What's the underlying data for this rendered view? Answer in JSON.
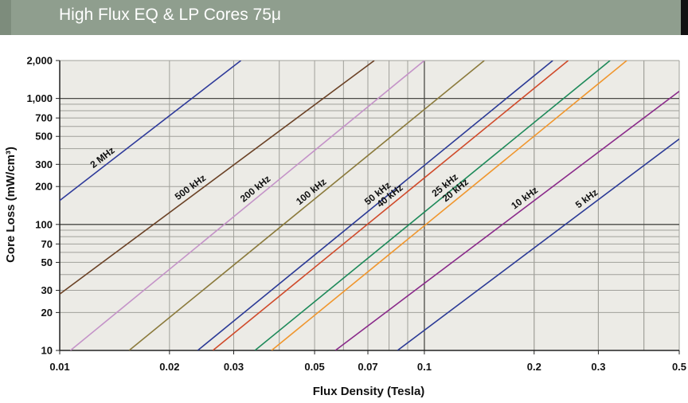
{
  "header": {
    "title": "High Flux EQ & LP Cores 75μ"
  },
  "colors": {
    "plot_bg": "#ecebe6",
    "grid": "#a0a09a",
    "grid_major": "#4a4a46",
    "header_bg": "#8f9e8e"
  },
  "chart_data": {
    "type": "line",
    "title": "",
    "xlabel": "Flux Density (Tesla)",
    "ylabel": "Core Loss (mW/cm³)",
    "xscale": "log",
    "yscale": "log",
    "xlim": [
      0.01,
      0.5
    ],
    "ylim": [
      10,
      2000
    ],
    "grid": true,
    "xticks": [
      {
        "value": 0.01,
        "label": "0.01"
      },
      {
        "value": 0.02,
        "label": "0.02"
      },
      {
        "value": 0.03,
        "label": "0.03"
      },
      {
        "value": 0.05,
        "label": "0.05"
      },
      {
        "value": 0.07,
        "label": "0.07"
      },
      {
        "value": 0.1,
        "label": "0.1"
      },
      {
        "value": 0.2,
        "label": "0.2"
      },
      {
        "value": 0.3,
        "label": "0.3"
      },
      {
        "value": 0.5,
        "label": "0.5"
      }
    ],
    "yticks": [
      {
        "value": 10,
        "label": "10"
      },
      {
        "value": 20,
        "label": "20"
      },
      {
        "value": 30,
        "label": "30"
      },
      {
        "value": 50,
        "label": "50"
      },
      {
        "value": 70,
        "label": "70"
      },
      {
        "value": 100,
        "label": "100"
      },
      {
        "value": 200,
        "label": "200"
      },
      {
        "value": 300,
        "label": "300"
      },
      {
        "value": 500,
        "label": "500"
      },
      {
        "value": 700,
        "label": "700"
      },
      {
        "value": 1000,
        "label": "1,000"
      },
      {
        "value": 2000,
        "label": "2,000"
      }
    ],
    "series": [
      {
        "name": "2 MHz",
        "color": "#2e3a9a",
        "points": [
          [
            0.01,
            155
          ],
          [
            0.0314,
            2000
          ]
        ],
        "label_at": 0.0135
      },
      {
        "name": "500 kHz",
        "color": "#6b4226",
        "points": [
          [
            0.01,
            28
          ],
          [
            0.0729,
            2000
          ]
        ],
        "label_at": 0.0235
      },
      {
        "name": "200 kHz",
        "color": "#c493c8",
        "points": [
          [
            0.0107,
            10
          ],
          [
            0.1,
            2000
          ]
        ],
        "label_at": 0.0355
      },
      {
        "name": "100 kHz",
        "color": "#8b7a3c",
        "points": [
          [
            0.0155,
            10
          ],
          [
            0.146,
            2000
          ]
        ],
        "label_at": 0.0505
      },
      {
        "name": "50 kHz",
        "color": "#2b3a96",
        "points": [
          [
            0.0239,
            10
          ],
          [
            0.225,
            2000
          ]
        ],
        "label_at": 0.0768
      },
      {
        "name": "40 kHz",
        "color": "#d04a2a",
        "points": [
          [
            0.0263,
            10
          ],
          [
            0.248,
            2000
          ]
        ],
        "label_at": 0.083
      },
      {
        "name": "25 kHz",
        "color": "#1e8a5a",
        "points": [
          [
            0.0343,
            10
          ],
          [
            0.323,
            2000
          ]
        ],
        "label_at": 0.1175
      },
      {
        "name": "20 kHz",
        "color": "#f0962d",
        "points": [
          [
            0.0381,
            10
          ],
          [
            0.359,
            2000
          ]
        ],
        "label_at": 0.1255
      },
      {
        "name": "10 kHz",
        "color": "#8a2a8a",
        "points": [
          [
            0.057,
            10
          ],
          [
            0.5,
            1140
          ]
        ],
        "label_at": 0.194
      },
      {
        "name": "5 kHz",
        "color": "#2b3a96",
        "points": [
          [
            0.0844,
            10
          ],
          [
            0.5,
            477
          ]
        ],
        "label_at": 0.287
      }
    ]
  }
}
